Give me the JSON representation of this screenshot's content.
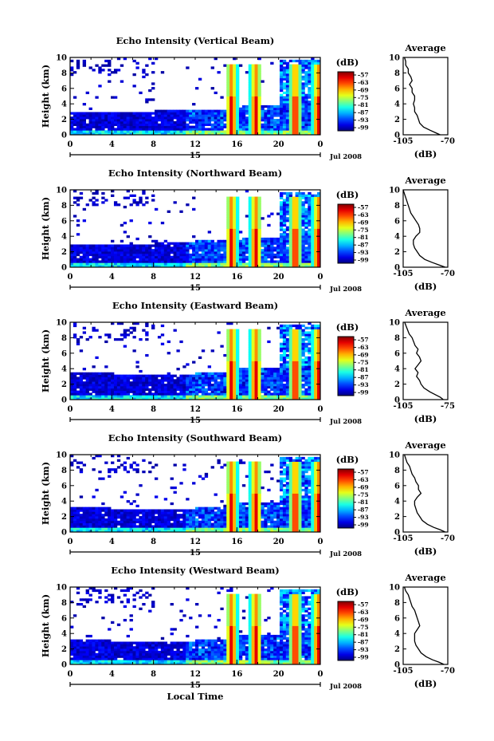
{
  "chart_data": [
    {
      "type": "heatmap",
      "title": "Echo Intensity (Vertical Beam)",
      "ylabel": "Height (km)",
      "xlabel": "",
      "xticks": [
        "0",
        "4",
        "8",
        "12",
        "16",
        "20",
        "0"
      ],
      "xlim": [
        0,
        24
      ],
      "yticks": [
        "0",
        "2",
        "4",
        "6",
        "8",
        "10"
      ],
      "ylim": [
        0,
        10
      ],
      "day_label": "15",
      "date_label": "Jul 2008",
      "colorbar_title": "(dB)",
      "colorbar_ticks": [
        "-57",
        "-63",
        "-69",
        "-75",
        "-81",
        "-87",
        "-93",
        "-99"
      ],
      "spikes_hours": [
        15.5,
        17.8,
        21.6,
        23.8
      ],
      "layer_top_km": [
        3.0,
        3.0,
        3.1,
        3.3,
        3.8,
        4.0
      ]
    },
    {
      "type": "heatmap",
      "title": "Echo Intensity (Northward Beam)",
      "ylabel": "Height (km)",
      "xlabel": "",
      "xticks": [
        "0",
        "4",
        "8",
        "12",
        "16",
        "20",
        "0"
      ],
      "xlim": [
        0,
        24
      ],
      "yticks": [
        "0",
        "2",
        "4",
        "6",
        "8",
        "10"
      ],
      "ylim": [
        0,
        10
      ],
      "day_label": "15",
      "date_label": "Jul 2008",
      "colorbar_title": "(dB)",
      "colorbar_ticks": [
        "-57",
        "-63",
        "-69",
        "-75",
        "-81",
        "-87",
        "-93",
        "-99"
      ],
      "spikes_hours": [
        15.5,
        17.8,
        21.6,
        23.8
      ],
      "layer_top_km": [
        3.0,
        3.0,
        3.1,
        3.4,
        3.9,
        4.2
      ]
    },
    {
      "type": "heatmap",
      "title": "Echo Intensity (Eastward Beam)",
      "ylabel": "Height (km)",
      "xlabel": "",
      "xticks": [
        "0",
        "4",
        "8",
        "12",
        "16",
        "20",
        "0"
      ],
      "xlim": [
        0,
        24
      ],
      "yticks": [
        "0",
        "2",
        "4",
        "6",
        "8",
        "10"
      ],
      "ylim": [
        0,
        10
      ],
      "day_label": "15",
      "date_label": "Jul 2008",
      "colorbar_title": "(dB)",
      "colorbar_ticks": [
        "-57",
        "-63",
        "-69",
        "-75",
        "-81",
        "-87",
        "-93",
        "-99"
      ],
      "spikes_hours": [
        15.5,
        17.8,
        21.6,
        23.8
      ],
      "layer_top_km": [
        3.5,
        3.3,
        3.2,
        3.5,
        4.0,
        4.5
      ]
    },
    {
      "type": "heatmap",
      "title": "Echo Intensity (Southward Beam)",
      "ylabel": "Height (km)",
      "xlabel": "",
      "xticks": [
        "0",
        "4",
        "8",
        "12",
        "16",
        "20",
        "0"
      ],
      "xlim": [
        0,
        24
      ],
      "yticks": [
        "0",
        "2",
        "4",
        "6",
        "8",
        "10"
      ],
      "ylim": [
        0,
        10
      ],
      "day_label": "15",
      "date_label": "Jul 2008",
      "colorbar_title": "(dB)",
      "colorbar_ticks": [
        "-57",
        "-63",
        "-69",
        "-75",
        "-81",
        "-87",
        "-93",
        "-99"
      ],
      "spikes_hours": [
        15.5,
        17.8,
        21.6,
        23.8
      ],
      "layer_top_km": [
        3.2,
        3.0,
        3.0,
        3.3,
        3.9,
        4.2
      ]
    },
    {
      "type": "heatmap",
      "title": "Echo Intensity (Westward Beam)",
      "ylabel": "Height (km)",
      "xlabel": "Local Time",
      "xticks": [
        "0",
        "4",
        "8",
        "12",
        "16",
        "20",
        "0"
      ],
      "xlim": [
        0,
        24
      ],
      "yticks": [
        "0",
        "2",
        "4",
        "6",
        "8",
        "10"
      ],
      "ylim": [
        0,
        10
      ],
      "day_label": "15",
      "date_label": "Jul 2008",
      "colorbar_title": "(dB)",
      "colorbar_ticks": [
        "-57",
        "-63",
        "-69",
        "-75",
        "-81",
        "-87",
        "-93",
        "-99"
      ],
      "spikes_hours": [
        15.5,
        17.8,
        21.6,
        23.8
      ],
      "layer_top_km": [
        3.1,
        3.0,
        3.0,
        3.3,
        3.9,
        4.2
      ]
    },
    {
      "type": "line",
      "title": "Average",
      "xlabel": "(dB)",
      "xticks": [
        "-105",
        "-70"
      ],
      "xlim": [
        -105,
        -70
      ],
      "yticks": [
        "0",
        "2",
        "4",
        "6",
        "8",
        "10"
      ],
      "ylim": [
        0,
        10
      ],
      "x": [
        -104,
        -103,
        -103,
        -101,
        -101,
        -99,
        -98,
        -100,
        -98,
        -98,
        -96,
        -96,
        -97,
        -96,
        -96,
        -94,
        -93,
        -92,
        -89,
        -84,
        -80,
        -76
      ],
      "y": [
        10,
        9.5,
        9,
        8.5,
        8,
        7.5,
        7,
        6.5,
        6,
        5.5,
        5,
        4.5,
        4,
        3.5,
        3,
        2.5,
        2,
        1.5,
        1.0,
        0.6,
        0.3,
        0
      ]
    },
    {
      "type": "line",
      "title": "Average",
      "xlabel": "(dB)",
      "xticks": [
        "-105",
        "-70"
      ],
      "xlim": [
        -105,
        -70
      ],
      "yticks": [
        "0",
        "2",
        "4",
        "6",
        "8",
        "10"
      ],
      "ylim": [
        0,
        10
      ],
      "x": [
        -105,
        -104,
        -103,
        -102,
        -101,
        -100,
        -99,
        -97,
        -95,
        -93,
        -92,
        -92,
        -95,
        -97,
        -97,
        -96,
        -94,
        -92,
        -88,
        -82,
        -77,
        -72
      ],
      "y": [
        10,
        9.5,
        9,
        8.5,
        8,
        7.5,
        7,
        6.5,
        6,
        5.5,
        5,
        4.5,
        4,
        3.5,
        3,
        2.5,
        2,
        1.5,
        1.0,
        0.6,
        0.3,
        0
      ]
    },
    {
      "type": "line",
      "title": "Average",
      "xlabel": "(dB)",
      "xticks": [
        "-105",
        "-75"
      ],
      "xlim": [
        -105,
        -75
      ],
      "yticks": [
        "0",
        "2",
        "4",
        "6",
        "8",
        "10"
      ],
      "ylim": [
        0,
        10
      ],
      "x": [
        -104,
        -103,
        -102,
        -101,
        -99,
        -98,
        -97,
        -95,
        -96,
        -94,
        -93,
        -95,
        -97,
        -95,
        -96,
        -94,
        -93,
        -91,
        -87,
        -83,
        -80,
        -78
      ],
      "y": [
        10,
        9.5,
        9,
        8.5,
        8,
        7.5,
        7,
        6.5,
        6,
        5.5,
        5,
        4.5,
        4,
        3.5,
        3,
        2.5,
        2,
        1.5,
        1.0,
        0.6,
        0.3,
        0
      ]
    },
    {
      "type": "line",
      "title": "Average",
      "xlabel": "(dB)",
      "xticks": [
        "-105",
        "-70"
      ],
      "xlim": [
        -105,
        -70
      ],
      "yticks": [
        "0",
        "2",
        "4",
        "6",
        "8",
        "10"
      ],
      "ylim": [
        0,
        10
      ],
      "x": [
        -104,
        -103,
        -102,
        -100,
        -99,
        -98,
        -96,
        -95,
        -93,
        -93,
        -91,
        -94,
        -96,
        -96,
        -95,
        -94,
        -92,
        -90,
        -86,
        -81,
        -76,
        -72
      ],
      "y": [
        10,
        9.5,
        9,
        8.5,
        8,
        7.5,
        7,
        6.5,
        6,
        5.5,
        5,
        4.5,
        4,
        3.5,
        3,
        2.5,
        2,
        1.5,
        1.0,
        0.6,
        0.3,
        0
      ]
    },
    {
      "type": "line",
      "title": "Average",
      "xlabel": "(dB)",
      "xticks": [
        "-105",
        "-70"
      ],
      "xlim": [
        -105,
        -70
      ],
      "yticks": [
        "0",
        "2",
        "4",
        "6",
        "8",
        "10"
      ],
      "ylim": [
        0,
        10
      ],
      "x": [
        -104,
        -103,
        -101,
        -100,
        -99,
        -98,
        -96,
        -95,
        -94,
        -93,
        -92,
        -94,
        -96,
        -96,
        -96,
        -95,
        -93,
        -91,
        -87,
        -82,
        -77,
        -73
      ],
      "y": [
        10,
        9.5,
        9,
        8.5,
        8,
        7.5,
        7,
        6.5,
        6,
        5.5,
        5,
        4.5,
        4,
        3.5,
        3,
        2.5,
        2,
        1.5,
        1.0,
        0.6,
        0.3,
        0
      ]
    }
  ]
}
